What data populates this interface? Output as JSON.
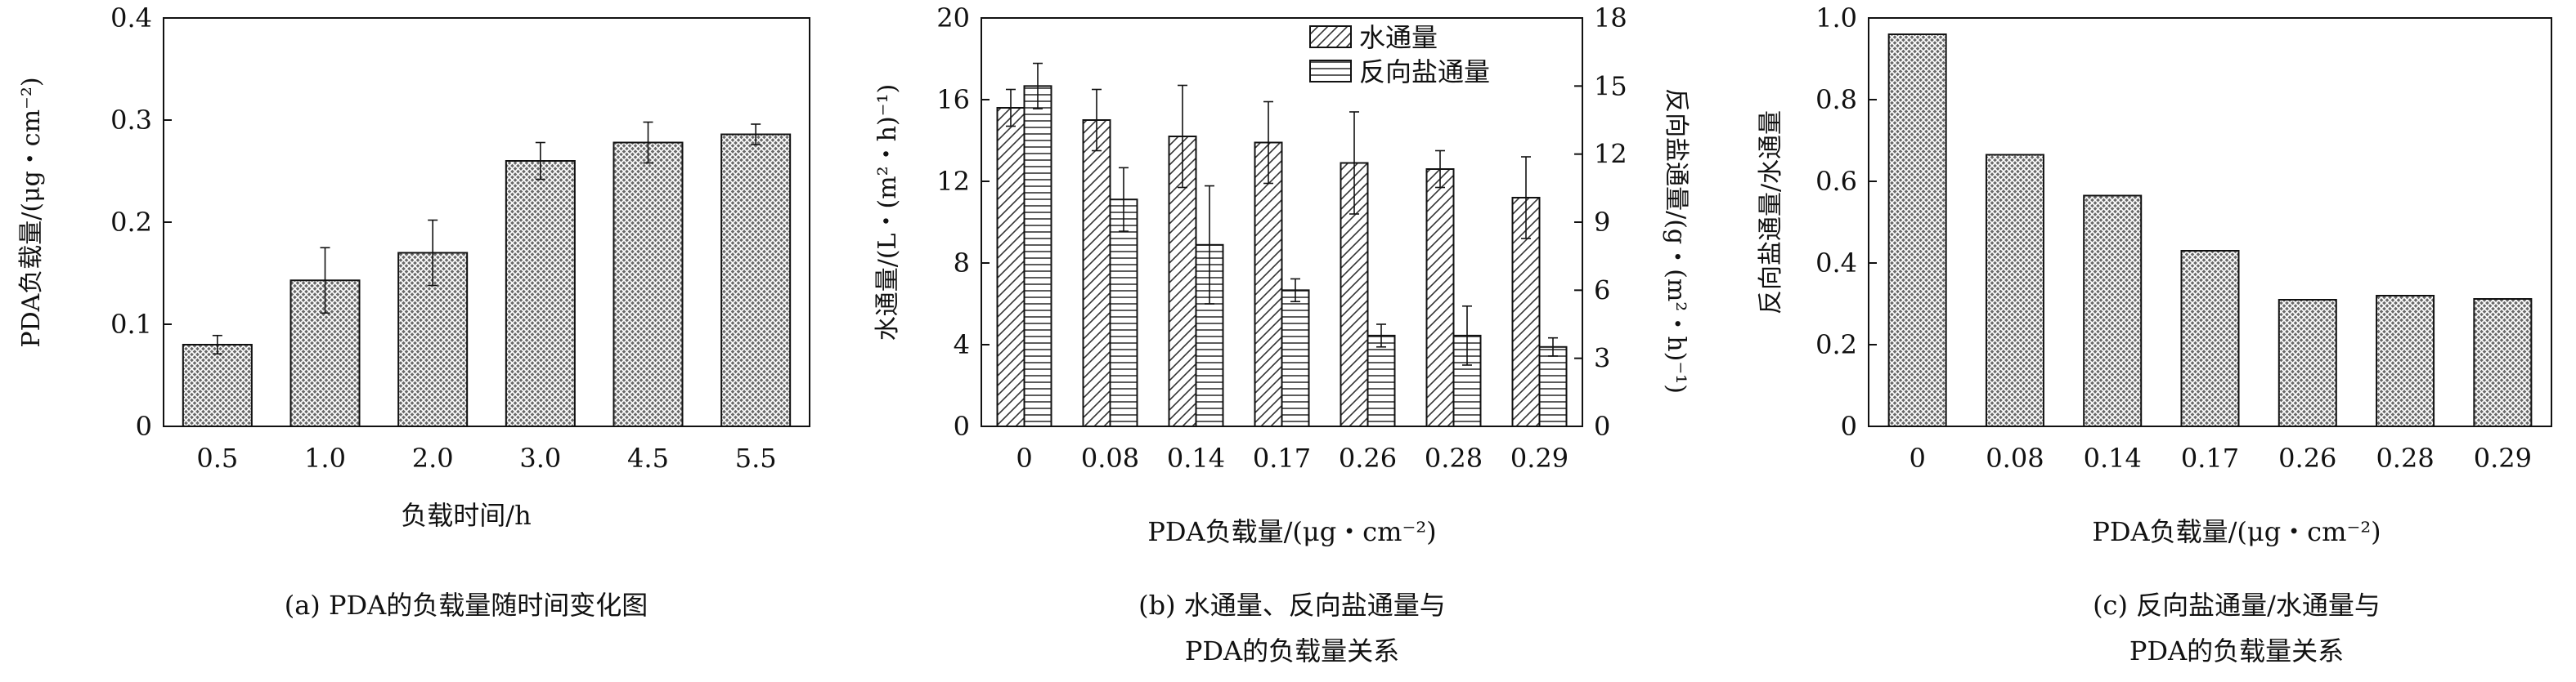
{
  "chart_data": [
    {
      "type": "bar",
      "caption": "(a) PDA的负载量随时间变化图",
      "xlabel": "负载时间/h",
      "ylabel": "PDA负载量/(μg・cm⁻²)",
      "ylim": [
        0,
        0.4
      ],
      "yticks": [
        "0",
        "0.1",
        "0.2",
        "0.3",
        "0.4"
      ],
      "categories": [
        "0.5",
        "1.0",
        "2.0",
        "3.0",
        "4.5",
        "5.5"
      ],
      "series": [
        {
          "values": [
            0.08,
            0.143,
            0.17,
            0.26,
            0.278,
            0.286
          ],
          "errors": [
            0.009,
            0.032,
            0.032,
            0.018,
            0.02,
            0.01
          ]
        }
      ],
      "pattern": "crosshatch",
      "legend": "none",
      "grid": false
    },
    {
      "type": "bar",
      "caption_line1": "(b) 水通量、反向盐通量与",
      "caption_line2": "PDA的负载量关系",
      "xlabel": "PDA负载量/(μg・cm⁻²)",
      "ylabel_left": "水通量/(L・(m²・h)⁻¹)",
      "ylabel_right": "反向盐通量/(g・(m²・h)⁻¹)",
      "ylim_left": [
        0,
        20
      ],
      "ylim_right": [
        0,
        18
      ],
      "yticks_left": [
        "0",
        "4",
        "8",
        "12",
        "16",
        "20"
      ],
      "yticks_right": [
        "0",
        "3",
        "6",
        "9",
        "12",
        "15",
        "18"
      ],
      "categories": [
        "0",
        "0.08",
        "0.14",
        "0.17",
        "0.26",
        "0.28",
        "0.29"
      ],
      "series": [
        {
          "name": "水通量",
          "axis": "left",
          "pattern": "diagonal",
          "values": [
            15.6,
            15.0,
            14.2,
            13.9,
            12.9,
            12.6,
            11.2
          ],
          "errors": [
            0.9,
            1.5,
            2.5,
            2.0,
            2.5,
            0.9,
            2.0
          ]
        },
        {
          "name": "反向盐通量",
          "axis": "right",
          "pattern": "horizontal",
          "values": [
            15.0,
            10.0,
            8.0,
            6.0,
            4.0,
            4.0,
            3.5
          ],
          "errors": [
            1.0,
            1.4,
            2.6,
            0.5,
            0.5,
            1.3,
            0.4
          ]
        }
      ],
      "legend": "top-right",
      "grid": false
    },
    {
      "type": "bar",
      "caption_line1": "(c) 反向盐通量/水通量与",
      "caption_line2": "PDA的负载量关系",
      "xlabel": "PDA负载量/(μg・cm⁻²)",
      "ylabel": "反向盐通量/水通量",
      "ylim": [
        0,
        1.0
      ],
      "yticks": [
        "0",
        "0.2",
        "0.4",
        "0.6",
        "0.8",
        "1.0"
      ],
      "categories": [
        "0",
        "0.08",
        "0.14",
        "0.17",
        "0.26",
        "0.28",
        "0.29"
      ],
      "series": [
        {
          "values": [
            0.96,
            0.665,
            0.565,
            0.43,
            0.31,
            0.32,
            0.312
          ]
        }
      ],
      "pattern": "crosshatch",
      "legend": "none",
      "grid": false
    }
  ]
}
